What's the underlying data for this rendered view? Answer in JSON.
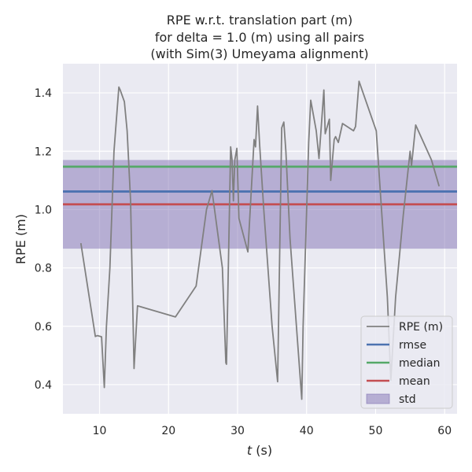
{
  "chart_data": {
    "type": "line",
    "title_lines": [
      "RPE w.r.t. translation part (m)",
      "for delta = 1.0 (m) using all pairs",
      "(with Sim(3) Umeyama alignment)"
    ],
    "xlabel_italic": "t",
    "xlabel_rest": " (s)",
    "ylabel": "RPE (m)",
    "xlim": [
      4.7,
      61.8
    ],
    "ylim": [
      0.3,
      1.5
    ],
    "x_ticks": [
      10,
      20,
      30,
      40,
      50,
      60
    ],
    "y_ticks": [
      0.4,
      0.6,
      0.8,
      1.0,
      1.2,
      1.4
    ],
    "x_tick_labels": [
      "10",
      "20",
      "30",
      "40",
      "50",
      "60"
    ],
    "y_tick_labels": [
      "0.4",
      "0.6",
      "0.8",
      "1.0",
      "1.2",
      "1.4"
    ],
    "grid": true,
    "legend_position": "lower-right",
    "series": [
      {
        "name": "RPE (m)",
        "color": "#808080",
        "x": [
          7.3,
          9.4,
          9.7,
          10.3,
          10.7,
          11.0,
          11.5,
          12.1,
          12.8,
          13.0,
          13.6,
          14.0,
          14.5,
          15.0,
          15.5,
          21.0,
          24.0,
          25.5,
          26.3,
          27.8,
          28.3,
          28.4,
          29.0,
          29.2,
          29.4,
          29.6,
          29.9,
          30.2,
          31.5,
          32.4,
          32.6,
          32.9,
          33.2,
          33.8,
          35.0,
          35.8,
          36.4,
          36.7,
          37.0,
          37.6,
          39.3,
          39.5,
          40.3,
          40.6,
          41.4,
          41.8,
          42.5,
          42.7,
          43.3,
          43.5,
          44.0,
          44.2,
          44.6,
          45.2,
          46.8,
          47.1,
          47.6,
          50.1,
          51.7,
          52.2,
          52.9,
          54.0,
          55.0,
          55.2,
          55.8,
          58.1,
          59.2
        ],
        "y": [
          0.885,
          0.565,
          0.568,
          0.564,
          0.39,
          0.6,
          0.8,
          1.2,
          1.42,
          1.41,
          1.37,
          1.27,
          1.03,
          0.455,
          0.67,
          0.632,
          0.738,
          1.0,
          1.065,
          0.8,
          0.475,
          0.47,
          1.215,
          1.17,
          1.03,
          1.17,
          1.21,
          0.97,
          0.855,
          1.24,
          1.215,
          1.355,
          1.22,
          1.0,
          0.6,
          0.41,
          1.28,
          1.3,
          1.2,
          0.9,
          0.35,
          0.6,
          1.23,
          1.375,
          1.27,
          1.175,
          1.41,
          1.26,
          1.31,
          1.1,
          1.24,
          1.25,
          1.23,
          1.295,
          1.27,
          1.285,
          1.44,
          1.27,
          0.7,
          0.415,
          0.7,
          0.98,
          1.2,
          1.15,
          1.29,
          1.17,
          1.08
        ]
      }
    ],
    "stats": {
      "rmse": 1.062,
      "median": 1.147,
      "mean": 1.018,
      "std": 0.152
    },
    "legend": [
      {
        "label": "RPE (m)",
        "kind": "line",
        "color": "#808080"
      },
      {
        "label": "rmse",
        "kind": "line",
        "color": "#4c72b0"
      },
      {
        "label": "median",
        "kind": "line",
        "color": "#55a868"
      },
      {
        "label": "mean",
        "kind": "line",
        "color": "#c44e52"
      },
      {
        "label": "std",
        "kind": "patch",
        "color": "#8172b3"
      }
    ],
    "colors": {
      "axes_bg": "#eaeaf2",
      "grid": "#ffffff",
      "rmse": "#4c72b0",
      "median": "#55a868",
      "mean": "#c44e52",
      "std_fill": "#8172b3"
    }
  }
}
